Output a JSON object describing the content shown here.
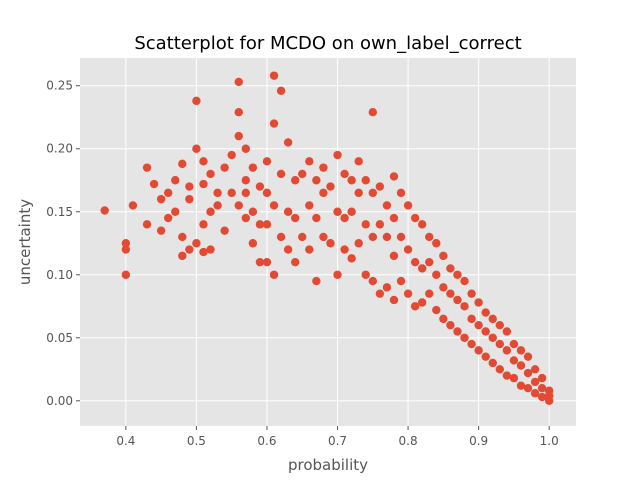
{
  "chart_data": {
    "type": "scatter",
    "title": "Scatterplot for MCDO on own_label_correct",
    "xlabel": "probability",
    "ylabel": "uncertainty",
    "xlim": [
      0.335,
      1.038
    ],
    "ylim": [
      -0.02,
      0.272
    ],
    "xticks": [
      0.4,
      0.5,
      0.6,
      0.7,
      0.8,
      0.9,
      1.0
    ],
    "xtick_labels": [
      "0.4",
      "0.5",
      "0.6",
      "0.7",
      "0.8",
      "0.9",
      "1.0"
    ],
    "yticks": [
      0.0,
      0.05,
      0.1,
      0.15,
      0.2,
      0.25
    ],
    "ytick_labels": [
      "0.00",
      "0.05",
      "0.10",
      "0.15",
      "0.20",
      "0.25"
    ],
    "grid": true,
    "background": "#e5e5e5",
    "gridcolor": "#ffffff",
    "marker_color": "#e24a33",
    "x": [
      0.37,
      0.4,
      0.4,
      0.4,
      0.41,
      0.43,
      0.43,
      0.44,
      0.45,
      0.45,
      0.46,
      0.46,
      0.47,
      0.47,
      0.48,
      0.48,
      0.48,
      0.49,
      0.49,
      0.49,
      0.5,
      0.5,
      0.5,
      0.51,
      0.51,
      0.51,
      0.51,
      0.52,
      0.52,
      0.52,
      0.53,
      0.53,
      0.54,
      0.54,
      0.55,
      0.55,
      0.56,
      0.56,
      0.56,
      0.56,
      0.57,
      0.57,
      0.57,
      0.57,
      0.58,
      0.58,
      0.58,
      0.59,
      0.59,
      0.59,
      0.6,
      0.6,
      0.6,
      0.6,
      0.61,
      0.61,
      0.61,
      0.61,
      0.62,
      0.62,
      0.62,
      0.63,
      0.63,
      0.63,
      0.64,
      0.64,
      0.64,
      0.65,
      0.65,
      0.66,
      0.66,
      0.66,
      0.67,
      0.67,
      0.67,
      0.68,
      0.68,
      0.68,
      0.69,
      0.69,
      0.7,
      0.7,
      0.7,
      0.71,
      0.71,
      0.71,
      0.72,
      0.72,
      0.72,
      0.73,
      0.73,
      0.73,
      0.74,
      0.74,
      0.74,
      0.75,
      0.75,
      0.75,
      0.75,
      0.76,
      0.76,
      0.76,
      0.77,
      0.77,
      0.77,
      0.78,
      0.78,
      0.78,
      0.78,
      0.79,
      0.79,
      0.79,
      0.8,
      0.8,
      0.8,
      0.81,
      0.81,
      0.81,
      0.82,
      0.82,
      0.82,
      0.83,
      0.83,
      0.83,
      0.84,
      0.84,
      0.84,
      0.85,
      0.85,
      0.85,
      0.86,
      0.86,
      0.86,
      0.87,
      0.87,
      0.87,
      0.88,
      0.88,
      0.88,
      0.89,
      0.89,
      0.89,
      0.9,
      0.9,
      0.9,
      0.91,
      0.91,
      0.91,
      0.92,
      0.92,
      0.92,
      0.93,
      0.93,
      0.93,
      0.94,
      0.94,
      0.94,
      0.95,
      0.95,
      0.95,
      0.96,
      0.96,
      0.96,
      0.97,
      0.97,
      0.97,
      0.98,
      0.98,
      0.98,
      0.99,
      0.99,
      0.99,
      1.0,
      1.0,
      1.0
    ],
    "y": [
      0.151,
      0.1,
      0.12,
      0.125,
      0.155,
      0.185,
      0.14,
      0.172,
      0.16,
      0.135,
      0.165,
      0.145,
      0.175,
      0.15,
      0.188,
      0.13,
      0.115,
      0.17,
      0.16,
      0.12,
      0.238,
      0.2,
      0.125,
      0.19,
      0.172,
      0.14,
      0.118,
      0.18,
      0.15,
      0.12,
      0.165,
      0.155,
      0.185,
      0.135,
      0.195,
      0.165,
      0.253,
      0.229,
      0.21,
      0.155,
      0.2,
      0.175,
      0.145,
      0.165,
      0.185,
      0.15,
      0.125,
      0.17,
      0.14,
      0.11,
      0.19,
      0.165,
      0.14,
      0.11,
      0.258,
      0.22,
      0.155,
      0.1,
      0.246,
      0.18,
      0.13,
      0.205,
      0.15,
      0.12,
      0.175,
      0.145,
      0.11,
      0.18,
      0.13,
      0.19,
      0.155,
      0.12,
      0.175,
      0.145,
      0.095,
      0.185,
      0.165,
      0.13,
      0.17,
      0.125,
      0.195,
      0.15,
      0.1,
      0.18,
      0.145,
      0.12,
      0.175,
      0.15,
      0.113,
      0.19,
      0.165,
      0.125,
      0.175,
      0.14,
      0.1,
      0.229,
      0.165,
      0.13,
      0.095,
      0.17,
      0.14,
      0.085,
      0.155,
      0.13,
      0.09,
      0.178,
      0.145,
      0.115,
      0.08,
      0.165,
      0.13,
      0.095,
      0.155,
      0.12,
      0.085,
      0.145,
      0.11,
      0.075,
      0.14,
      0.105,
      0.078,
      0.13,
      0.11,
      0.085,
      0.125,
      0.1,
      0.072,
      0.115,
      0.09,
      0.065,
      0.105,
      0.085,
      0.06,
      0.1,
      0.08,
      0.055,
      0.095,
      0.075,
      0.05,
      0.085,
      0.065,
      0.045,
      0.078,
      0.06,
      0.04,
      0.07,
      0.055,
      0.035,
      0.065,
      0.05,
      0.03,
      0.06,
      0.045,
      0.025,
      0.055,
      0.04,
      0.02,
      0.045,
      0.032,
      0.018,
      0.04,
      0.028,
      0.012,
      0.035,
      0.022,
      0.01,
      0.025,
      0.015,
      0.006,
      0.018,
      0.01,
      0.003,
      0.008,
      0.004,
      0.0
    ]
  }
}
